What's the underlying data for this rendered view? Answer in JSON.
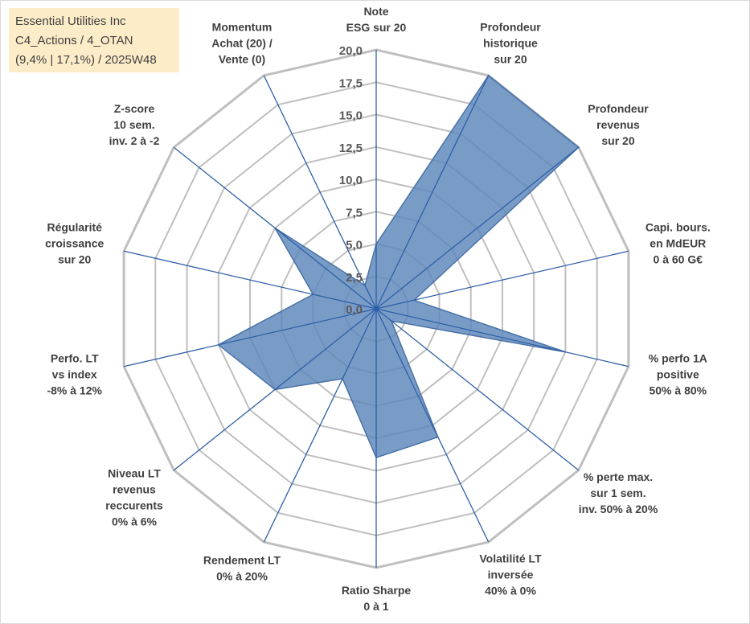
{
  "title_lines": [
    "Essential Utilities Inc",
    "C4_Actions / 4_OTAN",
    "(9,4% | 17,1%) / 2025W48"
  ],
  "colors": {
    "fill": "#5b86bb",
    "stroke": "#4a72a8",
    "grid": "#bfbfbf",
    "spoke": "#2e5fa8",
    "text": "#404040"
  },
  "chart_data": {
    "type": "radar",
    "title": "Essential Utilities Inc",
    "rmax": 20,
    "tick_step": 2.5,
    "tick_labels": [
      "0,0",
      "2,5",
      "5,0",
      "7,5",
      "10,0",
      "12,5",
      "15,0",
      "17,5",
      "20,0"
    ],
    "axes": [
      {
        "label": [
          "Note",
          "ESG sur 20"
        ],
        "value": 5.0
      },
      {
        "label": [
          "Profondeur",
          "historique",
          "sur 20"
        ],
        "value": 20.0
      },
      {
        "label": [
          "Profondeur",
          "revenus",
          "sur 20"
        ],
        "value": 20.0
      },
      {
        "label": [
          "Capi. bours.",
          "en MdEUR",
          "0 à 60 G€"
        ],
        "value": 3.0
      },
      {
        "label": [
          "% perfo 1A",
          "positive",
          "50% à 80%"
        ],
        "value": 15.0
      },
      {
        "label": [
          "% perte max.",
          "sur 1 sem.",
          "inv. 50% à 20%"
        ],
        "value": 1.5
      },
      {
        "label": [
          "Volatilité LT",
          "inversée",
          "40% à 0%"
        ],
        "value": 11.0
      },
      {
        "label": [
          "Ratio Sharpe",
          "0 à 1"
        ],
        "value": 11.5
      },
      {
        "label": [
          "Rendement LT",
          "0% à 20%"
        ],
        "value": 6.0
      },
      {
        "label": [
          "Niveau LT",
          "revenus",
          "reccurents",
          "0% à 6%"
        ],
        "value": 10.0
      },
      {
        "label": [
          "Perfo. LT",
          "vs index",
          "-8% à 12%"
        ],
        "value": 12.5
      },
      {
        "label": [
          "Régularité",
          "croissance",
          "sur 20"
        ],
        "value": 5.0
      },
      {
        "label": [
          "Z-score",
          "10 sem.",
          "inv. 2 à -2"
        ],
        "value": 10.0
      },
      {
        "label": [
          "Momentum",
          "Achat (20) /",
          "Vente (0)"
        ],
        "value": 2.0
      }
    ]
  }
}
